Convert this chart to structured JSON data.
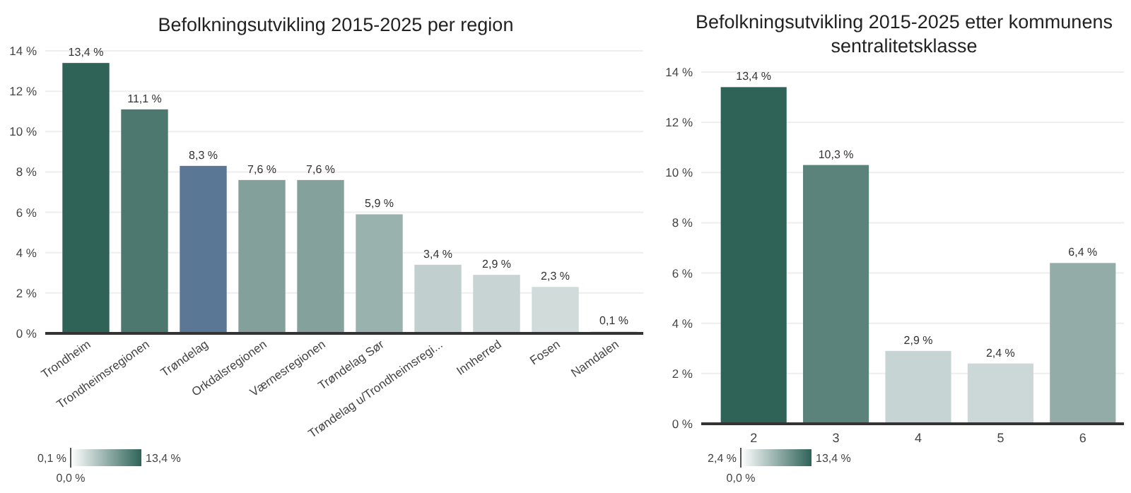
{
  "chart_data": [
    {
      "type": "bar",
      "title": "Befolkningsutvikling 2015-2025 per region",
      "categories": [
        "Trondheim",
        "Trondheimsregionen",
        "Trøndelag",
        "Orkdalsregionen",
        "Værnesregionen",
        "Trøndelag Sør",
        "Trøndelag u/Trondheimsregi...",
        "Innherred",
        "Fosen",
        "Namdalen"
      ],
      "values": [
        13.4,
        11.1,
        8.3,
        7.6,
        7.6,
        5.9,
        3.4,
        2.9,
        2.3,
        0.1
      ],
      "colors": [
        "#2f6358",
        "#4d786f",
        "#5a7795",
        "#84a09b",
        "#85a19c",
        "#9ab2ae",
        "#c1cfce",
        "#c8d4d3",
        "#d0dbda",
        "#dde5e4"
      ],
      "value_labels": [
        "13,4 %",
        "11,1 %",
        "8,3 %",
        "7,6 %",
        "7,6 %",
        "5,9 %",
        "3,4 %",
        "2,9 %",
        "2,3 %",
        "0,1 %"
      ],
      "ylim": [
        0,
        14
      ],
      "yticks": [
        {
          "value": 0,
          "label": "0 %"
        },
        {
          "value": 2,
          "label": "2 %"
        },
        {
          "value": 4,
          "label": "4 %"
        },
        {
          "value": 6,
          "label": "6 %"
        },
        {
          "value": 8,
          "label": "8 %"
        },
        {
          "value": 10,
          "label": "10 %"
        },
        {
          "value": 12,
          "label": "12 %"
        },
        {
          "value": 14,
          "label": "14 %"
        }
      ],
      "grid": "y",
      "annotations": [
        "0,1 %",
        "0,0 %",
        "13,4 %"
      ]
    },
    {
      "type": "bar",
      "title": "Befolkningsutvikling 2015-2025 etter kommunens sentralitetsklasse",
      "categories": [
        "2",
        "3",
        "4",
        "5",
        "6"
      ],
      "values": [
        13.4,
        10.3,
        2.9,
        2.4,
        6.4
      ],
      "colors": [
        "#2f6358",
        "#5b837c",
        "#c6d4d3",
        "#ccd8d7",
        "#94aca8"
      ],
      "value_labels": [
        "13,4 %",
        "10,3 %",
        "2,9 %",
        "2,4 %",
        "6,4 %"
      ],
      "ylim": [
        0,
        14
      ],
      "yticks": [
        {
          "value": 0,
          "label": "0 %"
        },
        {
          "value": 2,
          "label": "2 %"
        },
        {
          "value": 4,
          "label": "4 %"
        },
        {
          "value": 6,
          "label": "6 %"
        },
        {
          "value": 8,
          "label": "8 %"
        },
        {
          "value": 10,
          "label": "10 %"
        },
        {
          "value": 12,
          "label": "12 %"
        },
        {
          "value": 14,
          "label": "14 %"
        }
      ],
      "grid": "y",
      "annotations": [
        "2,4 %",
        "0,0 %",
        "13,4 %"
      ]
    }
  ]
}
